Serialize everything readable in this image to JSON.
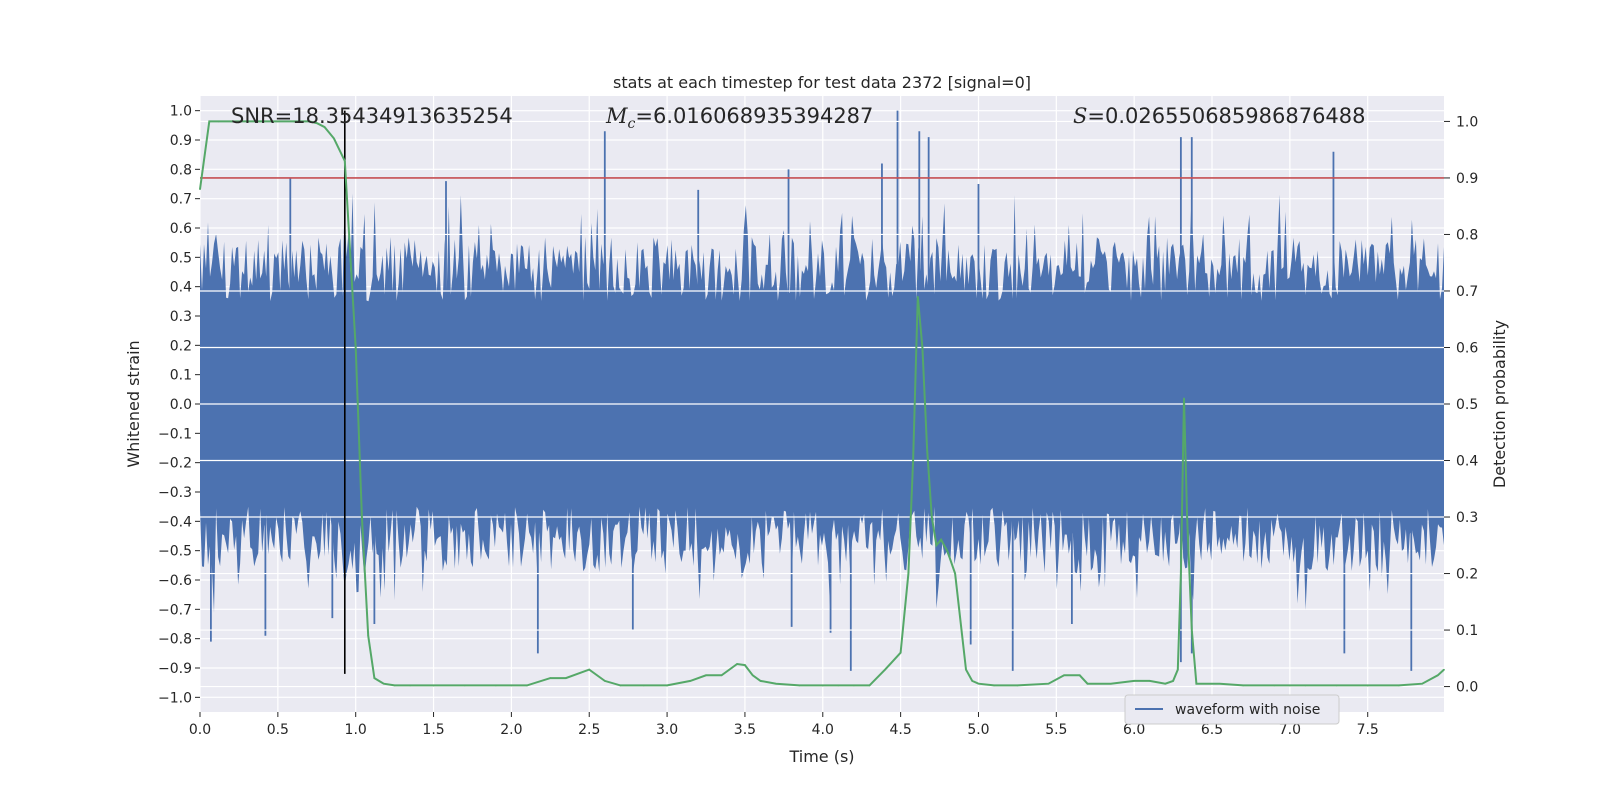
{
  "chart_data": {
    "type": "line",
    "title": "stats at each timestep for test data 2372 [signal=0]",
    "xlabel": "Time (s)",
    "ylabel": "Whitened strain",
    "y2label": "Detection probability",
    "xlim": [
      0.0,
      7.99
    ],
    "ylim": [
      -1.05,
      1.05
    ],
    "y2lim": [
      -0.045,
      1.045
    ],
    "xticks": [
      "0.0",
      "0.5",
      "1.0",
      "1.5",
      "2.0",
      "2.5",
      "3.0",
      "3.5",
      "4.0",
      "4.5",
      "5.0",
      "5.5",
      "6.0",
      "6.5",
      "7.0",
      "7.5"
    ],
    "yticks": [
      "−1.0",
      "−0.9",
      "−0.8",
      "−0.7",
      "−0.6",
      "−0.5",
      "−0.4",
      "−0.3",
      "−0.2",
      "−0.1",
      "0.0",
      "0.1",
      "0.2",
      "0.3",
      "0.4",
      "0.5",
      "0.6",
      "0.7",
      "0.8",
      "0.9",
      "1.0"
    ],
    "y2ticks": [
      "0.0",
      "0.1",
      "0.2",
      "0.3",
      "0.4",
      "0.5",
      "0.6",
      "0.7",
      "0.8",
      "0.9",
      "1.0"
    ],
    "annotations": {
      "snr": "SNR=18.35434913635254",
      "mc_symbol": "M",
      "mc_sub": "c",
      "mc_value": "=6.016068935394287",
      "s_symbol": "S",
      "s_value": "=0.026550685986876488"
    },
    "threshold": 0.9,
    "marker_time": 0.93,
    "legend": [
      "waveform with noise"
    ],
    "series": [
      {
        "name": "waveform with noise",
        "axis": "left",
        "color": "#4c72b0",
        "note": "dense whitened-noise waveform sampled over 0-8 s, band roughly ±0.4 with spikes to ±1.0",
        "envelope": 0.35,
        "spikes": [
          [
            2.6,
            0.93
          ],
          [
            4.48,
            1.0
          ],
          [
            4.62,
            0.93
          ],
          [
            4.68,
            0.91
          ],
          [
            6.3,
            0.91
          ],
          [
            6.37,
            0.91
          ],
          [
            7.28,
            0.86
          ],
          [
            3.78,
            0.8
          ],
          [
            4.38,
            0.82
          ],
          [
            0.58,
            0.77
          ],
          [
            1.58,
            0.76
          ],
          [
            3.2,
            0.73
          ],
          [
            5.0,
            0.75
          ],
          [
            4.18,
            -0.91
          ],
          [
            5.22,
            -0.91
          ],
          [
            7.78,
            -0.91
          ],
          [
            6.3,
            -0.88
          ],
          [
            6.37,
            -0.85
          ],
          [
            7.35,
            -0.85
          ],
          [
            2.17,
            -0.85
          ],
          [
            0.07,
            -0.81
          ],
          [
            0.42,
            -0.79
          ],
          [
            1.12,
            -0.75
          ],
          [
            2.78,
            -0.77
          ],
          [
            3.8,
            -0.76
          ],
          [
            4.05,
            -0.78
          ],
          [
            5.6,
            -0.75
          ],
          [
            4.95,
            -0.82
          ],
          [
            0.85,
            -0.73
          ]
        ]
      },
      {
        "name": "Detection probability",
        "axis": "right",
        "color": "#55a868",
        "x": [
          0.0,
          0.06,
          0.12,
          0.2,
          0.3,
          0.4,
          0.5,
          0.6,
          0.7,
          0.75,
          0.8,
          0.86,
          0.93,
          1.0,
          1.04,
          1.08,
          1.12,
          1.18,
          1.25,
          1.35,
          1.5,
          1.7,
          1.9,
          2.1,
          2.25,
          2.35,
          2.5,
          2.6,
          2.7,
          2.85,
          3.0,
          3.15,
          3.25,
          3.35,
          3.45,
          3.5,
          3.55,
          3.6,
          3.7,
          3.85,
          4.0,
          4.1,
          4.2,
          4.3,
          4.4,
          4.5,
          4.55,
          4.58,
          4.61,
          4.64,
          4.67,
          4.7,
          4.73,
          4.76,
          4.8,
          4.85,
          4.92,
          4.96,
          5.0,
          5.1,
          5.25,
          5.45,
          5.55,
          5.65,
          5.7,
          5.75,
          5.85,
          6.0,
          6.1,
          6.2,
          6.25,
          6.28,
          6.3,
          6.32,
          6.34,
          6.37,
          6.4,
          6.45,
          6.55,
          6.7,
          6.9,
          7.1,
          7.3,
          7.5,
          7.7,
          7.85,
          7.95,
          7.99
        ],
        "y": [
          0.88,
          1.0,
          1.0,
          1.0,
          1.0,
          1.0,
          1.0,
          1.0,
          1.0,
          0.997,
          0.99,
          0.97,
          0.93,
          0.6,
          0.3,
          0.09,
          0.015,
          0.005,
          0.002,
          0.002,
          0.002,
          0.002,
          0.002,
          0.002,
          0.015,
          0.015,
          0.03,
          0.01,
          0.002,
          0.002,
          0.002,
          0.01,
          0.02,
          0.02,
          0.04,
          0.038,
          0.02,
          0.01,
          0.005,
          0.002,
          0.002,
          0.002,
          0.002,
          0.002,
          0.03,
          0.06,
          0.2,
          0.4,
          0.69,
          0.6,
          0.42,
          0.3,
          0.25,
          0.26,
          0.24,
          0.2,
          0.03,
          0.01,
          0.005,
          0.002,
          0.002,
          0.005,
          0.02,
          0.02,
          0.005,
          0.005,
          0.005,
          0.01,
          0.01,
          0.005,
          0.01,
          0.03,
          0.2,
          0.51,
          0.3,
          0.1,
          0.005,
          0.005,
          0.005,
          0.002,
          0.002,
          0.002,
          0.002,
          0.002,
          0.002,
          0.005,
          0.02,
          0.03
        ]
      }
    ]
  }
}
